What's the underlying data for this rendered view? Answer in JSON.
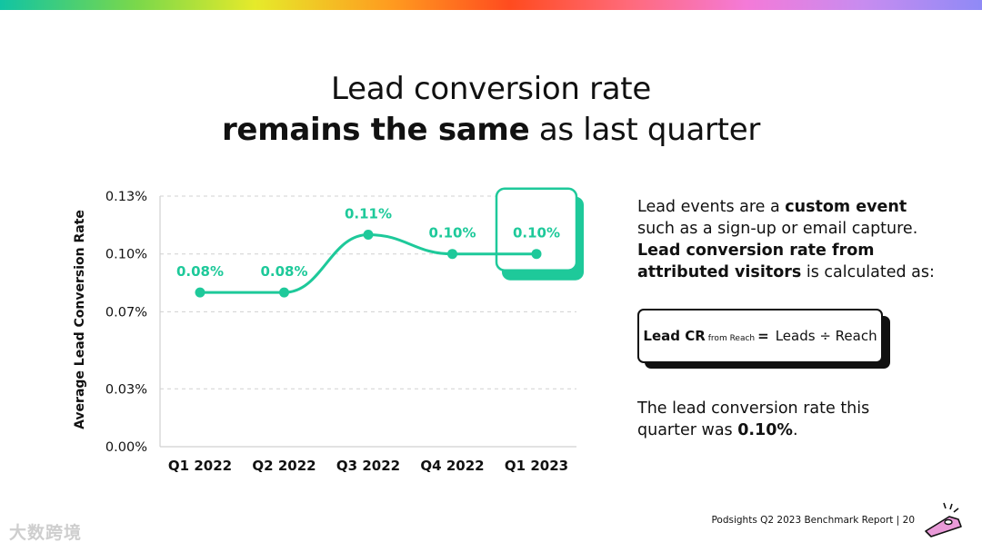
{
  "title": {
    "line1": "Lead conversion rate",
    "line2_bold": "remains the same",
    "line2_rest": "as last quarter"
  },
  "chart_data": {
    "type": "line",
    "categories": [
      "Q1 2022",
      "Q2 2022",
      "Q3 2022",
      "Q4 2022",
      "Q1 2023"
    ],
    "values": [
      0.08,
      0.08,
      0.11,
      0.1,
      0.1
    ],
    "data_labels": [
      "0.08%",
      "0.08%",
      "0.11%",
      "0.10%",
      "0.10%"
    ],
    "yticks": [
      0,
      0.03,
      0.07,
      0.1,
      0.13
    ],
    "ytick_labels": [
      "0.00%",
      "0.03%",
      "0.07%",
      "0.10%",
      "0.13%"
    ],
    "ylim": [
      0,
      0.13
    ],
    "ylabel": "Average Lead Conversion Rate",
    "xlabel": "",
    "highlighted_category": "Q1 2023",
    "grid": true,
    "line_color": "#1ec99a"
  },
  "description": {
    "p1_a": "Lead events are a ",
    "p1_b": "custom event",
    "p1_c": " such as a sign-up or email capture. ",
    "p1_d": "Lead conversion rate from attributed visitors",
    "p1_e": " is calculated as:",
    "p2_a": "The lead conversion rate this quarter was ",
    "p2_b": "0.10%",
    "p2_c": "."
  },
  "formula": {
    "lhs": "Lead CR",
    "subscript": "from Reach",
    "equals": "=",
    "rhs": "Leads ÷ Reach"
  },
  "footer": {
    "text": "Podsights Q2 2023 Benchmark Report | 20"
  },
  "watermark": {
    "text": "大数跨境"
  },
  "colors": {
    "accent": "#1ec99a",
    "grid": "#d0d0d0",
    "ink": "#111111",
    "kazoo": "#e99ad8"
  }
}
